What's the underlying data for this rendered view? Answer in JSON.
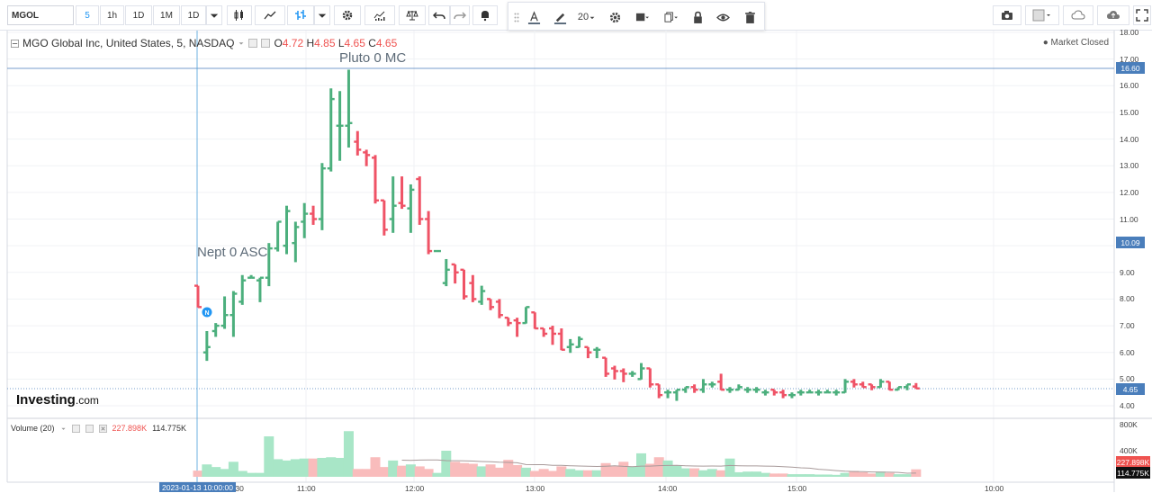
{
  "toolbar": {
    "symbol": "MGOL",
    "intervals": [
      "5",
      "1h",
      "1D",
      "1M",
      "1D"
    ],
    "active_interval_index": 0,
    "font_size": "20"
  },
  "legend": {
    "title": "MGO Global Inc, United States, 5, NASDAQ",
    "open_label": "O",
    "open": "4.72",
    "high_label": "H",
    "high": "4.85",
    "low_label": "L",
    "low": "4.65",
    "close_label": "C",
    "close": "4.65"
  },
  "market_status": "Market Closed",
  "annotations": {
    "pluto": "Pluto 0 MC",
    "nept": "Nept 0 ASC",
    "marker": "N"
  },
  "logo": {
    "name": "Investing",
    "suffix": ".com"
  },
  "volume_legend": {
    "label": "Volume (20)",
    "value1": "227.898K",
    "value2": "114.775K"
  },
  "price_axis": {
    "labels": [
      "18.00",
      "17.00",
      "16.00",
      "15.00",
      "14.00",
      "13.00",
      "12.00",
      "11.00",
      "10.00",
      "9.00",
      "8.00",
      "7.00",
      "6.00",
      "5.00",
      "4.00"
    ],
    "tag_high": "16.60",
    "tag_mid": "10.09",
    "tag_last": "4.65",
    "colors": {
      "tag_high": "#4a7ebb",
      "tag_mid": "#4a7ebb",
      "tag_last": "#4a7ebb"
    }
  },
  "volume_axis": {
    "labels": [
      "800K",
      "400K"
    ],
    "tag1": "227.898K",
    "tag2": "114.775K"
  },
  "time_axis": {
    "labels": [
      ":30",
      "11:00",
      "12:00",
      "13:00",
      "14:00",
      "15:00",
      "10:00"
    ],
    "crosshair_date": "2023-01-13 10:00:00"
  },
  "colors": {
    "up": "#4caf7d",
    "down": "#ef5366",
    "vol_up": "#a8e6c7",
    "vol_down": "#f9bcbc",
    "accent": "#2196f3"
  },
  "chart_data": {
    "type": "ohlc",
    "y_range": [
      3.6,
      18.2
    ],
    "bars": [
      {
        "o": 8.5,
        "h": 8.5,
        "l": 7.7,
        "c": 7.7,
        "v": 95000
      },
      {
        "o": 6.0,
        "h": 6.8,
        "l": 5.7,
        "c": 6.2,
        "v": 190000
      },
      {
        "o": 6.8,
        "h": 7.1,
        "l": 6.6,
        "c": 7.0,
        "v": 150000
      },
      {
        "o": 7.0,
        "h": 8.1,
        "l": 6.9,
        "c": 7.4,
        "v": 120000
      },
      {
        "o": 7.4,
        "h": 8.3,
        "l": 6.6,
        "c": 8.2,
        "v": 230000
      },
      {
        "o": 7.9,
        "h": 8.9,
        "l": 7.8,
        "c": 8.7,
        "v": 90000
      },
      {
        "o": 8.8,
        "h": 8.9,
        "l": 8.8,
        "c": 8.8,
        "v": 60000
      },
      {
        "o": 8.7,
        "h": 8.8,
        "l": 7.9,
        "c": 8.8,
        "v": 60000
      },
      {
        "o": 8.8,
        "h": 10.1,
        "l": 8.5,
        "c": 9.9,
        "v": 620000
      },
      {
        "o": 9.9,
        "h": 10.8,
        "l": 9.8,
        "c": 10.9,
        "v": 270000
      },
      {
        "o": 10.0,
        "h": 11.5,
        "l": 9.7,
        "c": 11.3,
        "v": 250000
      },
      {
        "o": 10.1,
        "h": 10.9,
        "l": 9.4,
        "c": 10.7,
        "v": 270000
      },
      {
        "o": 10.9,
        "h": 11.6,
        "l": 10.3,
        "c": 11.2,
        "v": 280000
      },
      {
        "o": 11.2,
        "h": 11.5,
        "l": 10.8,
        "c": 11.0,
        "v": 280000
      },
      {
        "o": 11.0,
        "h": 13.1,
        "l": 10.6,
        "c": 12.9,
        "v": 290000
      },
      {
        "o": 12.9,
        "h": 15.9,
        "l": 12.8,
        "c": 15.5,
        "v": 300000
      },
      {
        "o": 14.5,
        "h": 15.8,
        "l": 13.2,
        "c": 14.5,
        "v": 290000
      },
      {
        "o": 14.5,
        "h": 16.6,
        "l": 13.7,
        "c": 14.6,
        "v": 700000
      },
      {
        "o": 13.9,
        "h": 14.3,
        "l": 13.4,
        "c": 13.6,
        "v": 120000
      },
      {
        "o": 13.5,
        "h": 13.6,
        "l": 13.0,
        "c": 13.4,
        "v": 120000
      },
      {
        "o": 13.3,
        "h": 13.4,
        "l": 11.6,
        "c": 11.7,
        "v": 300000
      },
      {
        "o": 11.7,
        "h": 11.6,
        "l": 10.4,
        "c": 10.6,
        "v": 150000
      },
      {
        "o": 11.0,
        "h": 12.6,
        "l": 10.5,
        "c": 11.5,
        "v": 250000
      },
      {
        "o": 11.6,
        "h": 12.6,
        "l": 11.4,
        "c": 11.5,
        "v": 170000
      },
      {
        "o": 11.4,
        "h": 12.3,
        "l": 10.5,
        "c": 12.1,
        "v": 190000
      },
      {
        "o": 12.5,
        "h": 12.6,
        "l": 10.8,
        "c": 11.0,
        "v": 160000
      },
      {
        "o": 11.0,
        "h": 11.3,
        "l": 9.7,
        "c": 9.8,
        "v": 120000
      },
      {
        "o": 9.8,
        "h": 9.8,
        "l": 9.8,
        "c": 9.8,
        "v": 60000
      },
      {
        "o": 8.6,
        "h": 9.5,
        "l": 8.5,
        "c": 9.1,
        "v": 400000
      },
      {
        "o": 9.3,
        "h": 9.2,
        "l": 8.6,
        "c": 9.0,
        "v": 230000
      },
      {
        "o": 9.1,
        "h": 9.0,
        "l": 8.0,
        "c": 8.1,
        "v": 210000
      },
      {
        "o": 8.6,
        "h": 8.9,
        "l": 7.9,
        "c": 8.0,
        "v": 200000
      },
      {
        "o": 7.9,
        "h": 8.5,
        "l": 7.8,
        "c": 8.3,
        "v": 160000
      },
      {
        "o": 8.0,
        "h": 8.0,
        "l": 7.6,
        "c": 7.7,
        "v": 190000
      },
      {
        "o": 7.9,
        "h": 8.0,
        "l": 7.3,
        "c": 7.4,
        "v": 140000
      },
      {
        "o": 7.3,
        "h": 7.2,
        "l": 7.0,
        "c": 7.1,
        "v": 260000
      },
      {
        "o": 7.2,
        "h": 7.3,
        "l": 6.6,
        "c": 7.1,
        "v": 180000
      },
      {
        "o": 7.1,
        "h": 7.7,
        "l": 7.1,
        "c": 7.7,
        "v": 140000
      },
      {
        "o": 7.5,
        "h": 7.4,
        "l": 6.9,
        "c": 6.9,
        "v": 90000
      },
      {
        "o": 6.9,
        "h": 6.9,
        "l": 6.6,
        "c": 6.7,
        "v": 120000
      },
      {
        "o": 6.9,
        "h": 7.0,
        "l": 6.3,
        "c": 6.7,
        "v": 90000
      },
      {
        "o": 6.7,
        "h": 6.9,
        "l": 6.1,
        "c": 6.1,
        "v": 160000
      },
      {
        "o": 6.2,
        "h": 6.5,
        "l": 6.0,
        "c": 6.3,
        "v": 120000
      },
      {
        "o": 6.2,
        "h": 6.6,
        "l": 6.2,
        "c": 6.5,
        "v": 100000
      },
      {
        "o": 6.2,
        "h": 6.1,
        "l": 5.8,
        "c": 6.0,
        "v": 100000
      },
      {
        "o": 6.1,
        "h": 6.2,
        "l": 5.8,
        "c": 6.1,
        "v": 100000
      },
      {
        "o": 5.8,
        "h": 5.8,
        "l": 5.1,
        "c": 5.2,
        "v": 210000
      },
      {
        "o": 5.4,
        "h": 5.5,
        "l": 5.0,
        "c": 5.3,
        "v": 160000
      },
      {
        "o": 5.3,
        "h": 5.4,
        "l": 4.9,
        "c": 5.2,
        "v": 230000
      },
      {
        "o": 5.2,
        "h": 5.3,
        "l": 5.1,
        "c": 5.2,
        "v": 160000
      },
      {
        "o": 5.0,
        "h": 5.6,
        "l": 5.0,
        "c": 5.4,
        "v": 360000
      },
      {
        "o": 5.4,
        "h": 5.4,
        "l": 4.7,
        "c": 4.8,
        "v": 200000
      },
      {
        "o": 4.8,
        "h": 4.8,
        "l": 4.3,
        "c": 4.4,
        "v": 300000
      },
      {
        "o": 4.5,
        "h": 4.6,
        "l": 4.3,
        "c": 4.5,
        "v": 250000
      },
      {
        "o": 4.5,
        "h": 4.6,
        "l": 4.2,
        "c": 4.6,
        "v": 170000
      },
      {
        "o": 4.6,
        "h": 4.7,
        "l": 4.5,
        "c": 4.7,
        "v": 130000
      },
      {
        "o": 4.7,
        "h": 4.8,
        "l": 4.5,
        "c": 4.6,
        "v": 130000
      },
      {
        "o": 4.6,
        "h": 5.0,
        "l": 4.5,
        "c": 4.8,
        "v": 100000
      },
      {
        "o": 4.8,
        "h": 4.9,
        "l": 4.7,
        "c": 4.8,
        "v": 120000
      },
      {
        "o": 4.9,
        "h": 5.2,
        "l": 4.6,
        "c": 4.6,
        "v": 100000
      },
      {
        "o": 4.6,
        "h": 4.7,
        "l": 4.5,
        "c": 4.6,
        "v": 280000
      },
      {
        "o": 4.6,
        "h": 4.8,
        "l": 4.6,
        "c": 4.7,
        "v": 70000
      },
      {
        "o": 4.6,
        "h": 4.7,
        "l": 4.5,
        "c": 4.6,
        "v": 80000
      },
      {
        "o": 4.6,
        "h": 4.7,
        "l": 4.5,
        "c": 4.6,
        "v": 80000
      },
      {
        "o": 4.5,
        "h": 4.6,
        "l": 4.4,
        "c": 4.5,
        "v": 60000
      },
      {
        "o": 4.6,
        "h": 4.6,
        "l": 4.4,
        "c": 4.5,
        "v": 50000
      },
      {
        "o": 4.5,
        "h": 4.6,
        "l": 4.3,
        "c": 4.4,
        "v": 50000
      },
      {
        "o": 4.4,
        "h": 4.5,
        "l": 4.3,
        "c": 4.4,
        "v": 40000
      },
      {
        "o": 4.5,
        "h": 4.6,
        "l": 4.4,
        "c": 4.5,
        "v": 40000
      },
      {
        "o": 4.5,
        "h": 4.6,
        "l": 4.5,
        "c": 4.5,
        "v": 40000
      },
      {
        "o": 4.5,
        "h": 4.6,
        "l": 4.4,
        "c": 4.5,
        "v": 35000
      },
      {
        "o": 4.5,
        "h": 4.6,
        "l": 4.5,
        "c": 4.5,
        "v": 35000
      },
      {
        "o": 4.5,
        "h": 4.6,
        "l": 4.4,
        "c": 4.5,
        "v": 30000
      },
      {
        "o": 4.5,
        "h": 5.0,
        "l": 4.5,
        "c": 4.9,
        "v": 60000
      },
      {
        "o": 4.9,
        "h": 5.0,
        "l": 4.7,
        "c": 4.8,
        "v": 90000
      },
      {
        "o": 4.8,
        "h": 4.9,
        "l": 4.7,
        "c": 4.7,
        "v": 70000
      },
      {
        "o": 4.8,
        "h": 4.8,
        "l": 4.6,
        "c": 4.7,
        "v": 50000
      },
      {
        "o": 4.7,
        "h": 5.0,
        "l": 4.7,
        "c": 4.9,
        "v": 80000
      },
      {
        "o": 4.9,
        "h": 4.9,
        "l": 4.6,
        "c": 4.6,
        "v": 60000
      },
      {
        "o": 4.6,
        "h": 4.7,
        "l": 4.6,
        "c": 4.7,
        "v": 40000
      },
      {
        "o": 4.7,
        "h": 4.8,
        "l": 4.6,
        "c": 4.8,
        "v": 40000
      },
      {
        "o": 4.72,
        "h": 4.85,
        "l": 4.65,
        "c": 4.65,
        "v": 114775
      }
    ]
  }
}
